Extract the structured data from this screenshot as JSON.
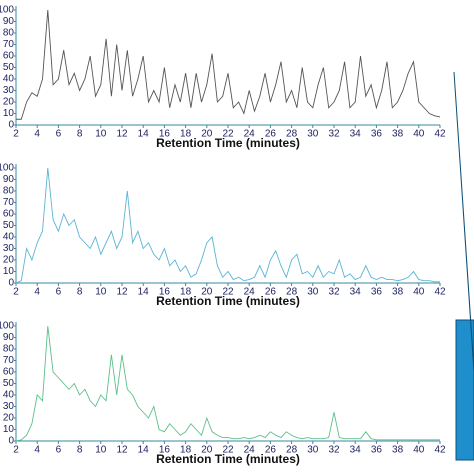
{
  "chart_data": [
    {
      "type": "line",
      "x_label": "Retention Time (minutes)",
      "x": [
        2,
        2.5,
        3,
        3.5,
        4,
        4.5,
        5,
        5.5,
        6,
        6.5,
        7,
        7.5,
        8,
        8.5,
        9,
        9.5,
        10,
        10.5,
        11,
        11.5,
        12,
        12.5,
        13,
        13.5,
        14,
        14.5,
        15,
        15.5,
        16,
        16.5,
        17,
        17.5,
        18,
        18.5,
        19,
        19.5,
        20,
        20.5,
        21,
        21.5,
        22,
        22.5,
        23,
        23.5,
        24,
        24.5,
        25,
        25.5,
        26,
        26.5,
        27,
        27.5,
        28,
        28.5,
        29,
        29.5,
        30,
        30.5,
        31,
        31.5,
        32,
        32.5,
        33,
        33.5,
        34,
        34.5,
        35,
        35.5,
        36,
        36.5,
        37,
        37.5,
        38,
        38.5,
        39,
        39.5,
        40,
        40.5,
        41,
        41.5,
        42
      ],
      "series": [
        {
          "color": "#555555",
          "values": [
            5,
            5,
            20,
            28,
            25,
            40,
            100,
            35,
            40,
            65,
            35,
            45,
            30,
            40,
            60,
            25,
            35,
            75,
            25,
            70,
            30,
            65,
            25,
            40,
            60,
            20,
            30,
            20,
            50,
            15,
            35,
            20,
            45,
            15,
            45,
            20,
            35,
            62,
            20,
            25,
            45,
            15,
            20,
            10,
            30,
            12,
            25,
            45,
            20,
            35,
            55,
            20,
            30,
            15,
            50,
            20,
            15,
            35,
            50,
            15,
            20,
            30,
            55,
            15,
            20,
            60,
            25,
            35,
            15,
            30,
            55,
            15,
            20,
            30,
            45,
            55,
            20,
            15,
            10,
            8,
            7
          ]
        }
      ],
      "xlim": [
        2,
        42
      ],
      "xticks": [
        2,
        4,
        6,
        8,
        10,
        12,
        14,
        16,
        18,
        20,
        22,
        24,
        26,
        28,
        30,
        32,
        34,
        36,
        38,
        40,
        42
      ],
      "ylim": [
        0,
        100
      ],
      "yticks": [
        0,
        10,
        20,
        30,
        40,
        50,
        60,
        70,
        80,
        90,
        100
      ]
    },
    {
      "type": "line",
      "x_label": "Retention Time (minutes)",
      "x": [
        2,
        2.5,
        3,
        3.5,
        4,
        4.5,
        5,
        5.5,
        6,
        6.5,
        7,
        7.5,
        8,
        8.5,
        9,
        9.5,
        10,
        10.5,
        11,
        11.5,
        12,
        12.5,
        13,
        13.5,
        14,
        14.5,
        15,
        15.5,
        16,
        16.5,
        17,
        17.5,
        18,
        18.5,
        19,
        19.5,
        20,
        20.5,
        21,
        21.5,
        22,
        22.5,
        23,
        23.5,
        24,
        24.5,
        25,
        25.5,
        26,
        26.5,
        27,
        27.5,
        28,
        28.5,
        29,
        29.5,
        30,
        30.5,
        31,
        31.5,
        32,
        32.5,
        33,
        33.5,
        34,
        34.5,
        35,
        35.5,
        36,
        36.5,
        37,
        37.5,
        38,
        38.5,
        39,
        39.5,
        40,
        40.5,
        41,
        41.5,
        42
      ],
      "series": [
        {
          "color": "#5ab4d6",
          "values": [
            0,
            2,
            30,
            20,
            35,
            45,
            100,
            55,
            45,
            60,
            50,
            55,
            40,
            35,
            30,
            40,
            25,
            35,
            45,
            30,
            40,
            80,
            35,
            45,
            30,
            35,
            25,
            20,
            30,
            15,
            20,
            10,
            15,
            5,
            8,
            20,
            35,
            40,
            15,
            5,
            10,
            3,
            5,
            2,
            3,
            5,
            15,
            5,
            20,
            28,
            15,
            5,
            20,
            25,
            8,
            10,
            5,
            15,
            5,
            10,
            8,
            20,
            5,
            8,
            3,
            5,
            15,
            5,
            3,
            5,
            3,
            3,
            2,
            3,
            5,
            10,
            3,
            2,
            2,
            1,
            1
          ]
        }
      ],
      "xlim": [
        2,
        42
      ],
      "xticks": [
        2,
        4,
        6,
        8,
        10,
        12,
        14,
        16,
        18,
        20,
        22,
        24,
        26,
        28,
        30,
        32,
        34,
        36,
        38,
        40,
        42
      ],
      "ylim": [
        0,
        100
      ],
      "yticks": [
        0,
        10,
        20,
        30,
        40,
        50,
        60,
        70,
        80,
        90,
        100
      ]
    },
    {
      "type": "line",
      "x_label": "Retention Time (minutes)",
      "x": [
        2,
        2.5,
        3,
        3.5,
        4,
        4.5,
        5,
        5.5,
        6,
        6.5,
        7,
        7.5,
        8,
        8.5,
        9,
        9.5,
        10,
        10.5,
        11,
        11.5,
        12,
        12.5,
        13,
        13.5,
        14,
        14.5,
        15,
        15.5,
        16,
        16.5,
        17,
        17.5,
        18,
        18.5,
        19,
        19.5,
        20,
        20.5,
        21,
        21.5,
        22,
        22.5,
        23,
        23.5,
        24,
        24.5,
        25,
        25.5,
        26,
        26.5,
        27,
        27.5,
        28,
        28.5,
        29,
        29.5,
        30,
        30.5,
        31,
        31.5,
        32,
        32.5,
        33,
        33.5,
        34,
        34.5,
        35,
        35.5,
        36,
        36.5,
        37,
        37.5,
        38,
        38.5,
        39,
        39.5,
        40,
        40.5,
        41,
        41.5,
        42
      ],
      "series": [
        {
          "color": "#5cc08a",
          "values": [
            0,
            1,
            5,
            15,
            40,
            35,
            100,
            60,
            55,
            50,
            45,
            50,
            40,
            45,
            35,
            30,
            40,
            35,
            75,
            40,
            75,
            45,
            40,
            30,
            25,
            20,
            30,
            10,
            8,
            15,
            10,
            5,
            8,
            15,
            10,
            5,
            20,
            8,
            5,
            3,
            3,
            2,
            2,
            3,
            2,
            3,
            5,
            3,
            8,
            5,
            3,
            8,
            5,
            3,
            2,
            3,
            2,
            2,
            2,
            3,
            25,
            3,
            2,
            2,
            2,
            2,
            8,
            2,
            1,
            1,
            1,
            1,
            1,
            1,
            1,
            1,
            1,
            1,
            1,
            1,
            1
          ]
        }
      ],
      "xlim": [
        2,
        42
      ],
      "xticks": [
        2,
        4,
        6,
        8,
        10,
        12,
        14,
        16,
        18,
        20,
        22,
        24,
        26,
        28,
        30,
        32,
        34,
        36,
        38,
        40,
        42
      ],
      "ylim": [
        0,
        100
      ],
      "yticks": [
        0,
        10,
        20,
        30,
        40,
        50,
        60,
        70,
        80,
        90,
        100
      ]
    }
  ]
}
